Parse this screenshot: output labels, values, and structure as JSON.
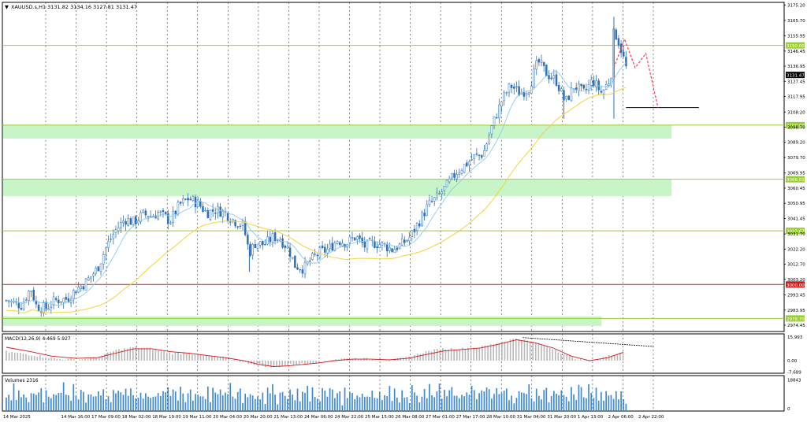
{
  "colors": {
    "background": "#ffffff",
    "grid": "#3a3a3a",
    "axis": "#000000",
    "candle_bull": "#2f6fb7",
    "candle_bear": "#2f6fb7",
    "ma_fast": "#8ec9f2",
    "ma_slow": "#f4d23c",
    "level_line": "#9acd32",
    "level_label_bg": "#9acd32",
    "red_line": "#d01818",
    "zone_fill": "#c8f5c8",
    "forecast": "#ff3e5e",
    "macd_hist": "#b8b8b8",
    "macd_signal": "#d01818",
    "volume": "#3f8ad6"
  },
  "header": {
    "title": "XAUUSD.s,H1  3131.82 3134.16 3127.81 3131.47"
  },
  "chart_data": {
    "type": "candlestick",
    "symbol": "XAUUSD.s",
    "timeframe": "H1",
    "ohlc_header": [
      3131.82,
      3134.16,
      3127.81,
      3131.47
    ],
    "ylim": [
      2970.5,
      3177.0
    ],
    "y_ticks": [
      "3175.20",
      "3165.70",
      "3155.95",
      "3146.45",
      "3136.95",
      "3127.45",
      "3117.95",
      "3108.20",
      "3098.70",
      "3089.20",
      "3079.70",
      "3069.95",
      "3060.45",
      "3050.95",
      "3041.45",
      "3031.70",
      "3022.20",
      "3012.70",
      "3003.20",
      "2993.45",
      "2983.95",
      "2974.45"
    ],
    "x_ticks": [
      "14 Mar 2025",
      "14 Mar 16:00",
      "17 Mar 09:00",
      "18 Mar 02:00",
      "18 Mar 19:00",
      "19 Mar 11:00",
      "20 Mar 04:00",
      "20 Mar 20:00",
      "21 Mar 13:00",
      "24 Mar 06:00",
      "24 Mar 22:00",
      "25 Mar 15:00",
      "26 Mar 08:00",
      "27 Mar 01:00",
      "27 Mar 17:00",
      "28 Mar 10:00",
      "31 Mar 04:00",
      "31 Mar 20:00",
      "1 Apr 13:00",
      "2 Apr 06:00",
      "2 Apr 22:00"
    ],
    "current_price": "3131.47",
    "levels": [
      {
        "price": 3150.0,
        "label": "3150.00",
        "kind": "resistance"
      },
      {
        "price": 3100.0,
        "label": "3100.00",
        "kind": "support"
      },
      {
        "price": 3066.02,
        "label": "3066.02",
        "kind": "support"
      },
      {
        "price": 3033.67,
        "label": "3033.67",
        "kind": "support"
      },
      {
        "price": 3000.0,
        "label": "3000.00",
        "kind": "key"
      },
      {
        "price": 2978.7,
        "label": "2978.70",
        "kind": "support"
      }
    ],
    "zones": [
      {
        "from": 3091.5,
        "to": 3100.0,
        "until_tick": 20.6
      },
      {
        "from": 3055.5,
        "to": 3066.0,
        "until_tick": 20.6
      },
      {
        "from": 2974.0,
        "to": 2980.0,
        "until_tick": 18.3
      }
    ],
    "horizontal_mark": {
      "price": 3111.0,
      "from_tick": 19.1,
      "to_tick": 21.5
    },
    "forecast_path": [
      {
        "t": 20.0,
        "p": 3136.0
      },
      {
        "t": 20.35,
        "p": 3154.0
      },
      {
        "t": 20.7,
        "p": 3136.0
      },
      {
        "t": 21.05,
        "p": 3145.0
      },
      {
        "t": 21.45,
        "p": 3111.0
      }
    ],
    "close_path": [
      [
        0.0,
        2990
      ],
      [
        0.5,
        2987
      ],
      [
        0.8,
        2998
      ],
      [
        1.0,
        2986
      ],
      [
        1.3,
        2985
      ],
      [
        1.6,
        2990
      ],
      [
        2.0,
        2991
      ],
      [
        2.3,
        2997
      ],
      [
        2.6,
        3001
      ],
      [
        3.0,
        3010
      ],
      [
        3.3,
        3024
      ],
      [
        3.6,
        3034
      ],
      [
        3.9,
        3041
      ],
      [
        4.2,
        3039
      ],
      [
        4.5,
        3044
      ],
      [
        4.8,
        3043
      ],
      [
        5.0,
        3045
      ],
      [
        5.4,
        3040
      ],
      [
        5.7,
        3050
      ],
      [
        6.0,
        3054
      ],
      [
        6.3,
        3051
      ],
      [
        6.6,
        3045
      ],
      [
        6.9,
        3047
      ],
      [
        7.2,
        3045
      ],
      [
        7.5,
        3040
      ],
      [
        7.8,
        3037
      ],
      [
        8.0,
        3020
      ],
      [
        8.2,
        3026
      ],
      [
        8.5,
        3025
      ],
      [
        8.8,
        3030
      ],
      [
        9.0,
        3029
      ],
      [
        9.3,
        3022
      ],
      [
        9.5,
        3012
      ],
      [
        9.8,
        3010
      ],
      [
        10.0,
        3015
      ],
      [
        10.3,
        3020
      ],
      [
        10.6,
        3022
      ],
      [
        10.9,
        3028
      ],
      [
        11.2,
        3026
      ],
      [
        11.5,
        3030
      ],
      [
        11.8,
        3024
      ],
      [
        12.1,
        3026
      ],
      [
        12.4,
        3025
      ],
      [
        12.7,
        3022
      ],
      [
        13.0,
        3025
      ],
      [
        13.3,
        3030
      ],
      [
        13.6,
        3040
      ],
      [
        13.9,
        3050
      ],
      [
        14.2,
        3055
      ],
      [
        14.5,
        3062
      ],
      [
        14.8,
        3070
      ],
      [
        15.1,
        3075
      ],
      [
        15.4,
        3080
      ],
      [
        15.7,
        3082
      ],
      [
        16.0,
        3100
      ],
      [
        16.3,
        3115
      ],
      [
        16.6,
        3125
      ],
      [
        16.9,
        3120
      ],
      [
        17.2,
        3123
      ],
      [
        17.5,
        3140
      ],
      [
        17.8,
        3132
      ],
      [
        18.1,
        3128
      ],
      [
        18.4,
        3114
      ],
      [
        18.7,
        3125
      ],
      [
        19.0,
        3120
      ],
      [
        19.3,
        3128
      ],
      [
        19.6,
        3120
      ],
      [
        19.9,
        3130
      ],
      [
        20.0,
        3160
      ],
      [
        20.2,
        3150
      ],
      [
        20.4,
        3136
      ]
    ],
    "spikes": [
      {
        "t": 8.0,
        "low": 3008
      },
      {
        "t": 18.35,
        "low": 3104
      },
      {
        "t": 20.0,
        "low": 3104,
        "high": 3168
      }
    ]
  },
  "macd": {
    "label": "MACD(12,26,9) 4.469 5.927",
    "y_ticks": [
      "15.993",
      "0.00",
      "-7.689"
    ],
    "ylim": [
      -8.5,
      18.0
    ],
    "hist_path": [
      [
        0,
        6
      ],
      [
        0.8,
        4
      ],
      [
        1.5,
        1.5
      ],
      [
        2.3,
        0.5
      ],
      [
        3.0,
        2
      ],
      [
        3.6,
        7
      ],
      [
        4.2,
        9
      ],
      [
        4.8,
        8
      ],
      [
        5.4,
        5
      ],
      [
        6.0,
        5
      ],
      [
        6.6,
        3
      ],
      [
        7.2,
        2
      ],
      [
        7.8,
        -1
      ],
      [
        8.3,
        -3
      ],
      [
        8.8,
        -4.5
      ],
      [
        9.3,
        -3
      ],
      [
        9.8,
        -2
      ],
      [
        10.3,
        -1
      ],
      [
        10.8,
        1
      ],
      [
        11.4,
        1.5
      ],
      [
        12.0,
        1
      ],
      [
        12.6,
        0
      ],
      [
        13.2,
        2
      ],
      [
        13.8,
        6
      ],
      [
        14.4,
        8
      ],
      [
        15.0,
        8
      ],
      [
        15.6,
        9
      ],
      [
        16.2,
        12
      ],
      [
        16.8,
        15
      ],
      [
        17.4,
        12
      ],
      [
        18.0,
        8
      ],
      [
        18.6,
        2
      ],
      [
        19.2,
        -0.5
      ],
      [
        19.8,
        3
      ],
      [
        20.3,
        6
      ]
    ],
    "signal_path": [
      [
        0,
        9
      ],
      [
        0.8,
        6
      ],
      [
        1.5,
        3
      ],
      [
        2.3,
        1.5
      ],
      [
        3.0,
        2
      ],
      [
        3.6,
        5
      ],
      [
        4.2,
        8
      ],
      [
        4.8,
        8
      ],
      [
        5.4,
        6
      ],
      [
        6.0,
        5
      ],
      [
        6.6,
        3.5
      ],
      [
        7.2,
        2
      ],
      [
        7.8,
        0
      ],
      [
        8.3,
        -2.5
      ],
      [
        8.8,
        -4
      ],
      [
        9.3,
        -3.5
      ],
      [
        9.8,
        -2.5
      ],
      [
        10.3,
        -1.5
      ],
      [
        10.8,
        0
      ],
      [
        11.4,
        1
      ],
      [
        12.0,
        1
      ],
      [
        12.6,
        0.5
      ],
      [
        13.2,
        1.5
      ],
      [
        13.8,
        4
      ],
      [
        14.4,
        6.5
      ],
      [
        15.0,
        7.5
      ],
      [
        15.6,
        8.5
      ],
      [
        16.2,
        11
      ],
      [
        16.8,
        14
      ],
      [
        17.4,
        12
      ],
      [
        18.0,
        8.5
      ],
      [
        18.6,
        3
      ],
      [
        19.2,
        0
      ],
      [
        19.8,
        2
      ],
      [
        20.3,
        5.5
      ]
    ],
    "divergence_line": [
      [
        17.0,
        15.5
      ],
      [
        21.3,
        9.5
      ]
    ]
  },
  "volumes": {
    "label": "Volumes 2316",
    "y_ticks": [
      "18843",
      "0"
    ],
    "ylim": [
      0,
      20500
    ],
    "seed_heights": [
      0.55,
      0.7,
      0.4,
      0.85,
      0.3,
      0.6,
      0.45,
      0.75,
      0.5,
      0.35,
      0.9,
      0.6,
      0.4,
      0.65,
      0.8,
      0.3,
      0.55,
      0.7,
      0.45,
      0.6
    ]
  }
}
